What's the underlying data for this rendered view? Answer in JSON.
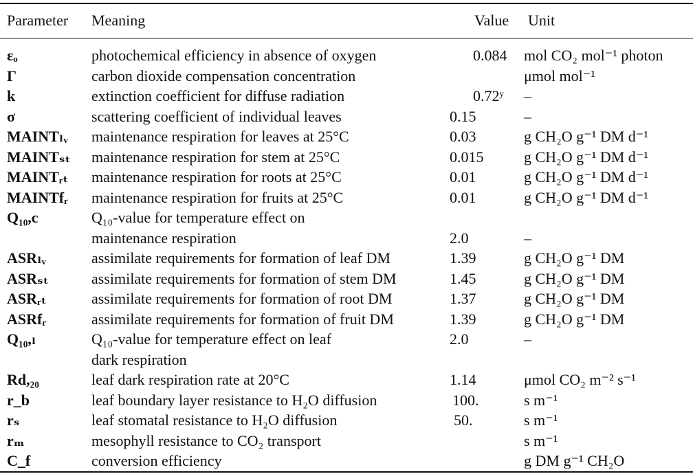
{
  "table": {
    "headers": {
      "parameter": "Parameter",
      "meaning": "Meaning",
      "value": "Value",
      "unit": "Unit"
    },
    "rows": [
      {
        "param": "εₒ",
        "meaning": "photochemical efficiency in absence of oxygen",
        "value": "0.084",
        "unit": "mol CO₂ mol⁻¹ photon"
      },
      {
        "param": "Γ",
        "meaning": "carbon dioxide compensation concentration",
        "value": "",
        "unit": "μmol mol⁻¹"
      },
      {
        "param": "k",
        "meaning": "extinction coefficient for diffuse radiation",
        "value": "0.72ʸ",
        "unit": "–"
      },
      {
        "param": "σ",
        "meaning": "scattering coefficient of individual leaves",
        "value": "0.15",
        "unit": "–"
      },
      {
        "param": "MAINTₗᵥ",
        "meaning": "maintenance respiration for leaves at 25°C",
        "value": "0.03",
        "unit": "g CH₂O g⁻¹ DM d⁻¹"
      },
      {
        "param": "MAINTₛₜ",
        "meaning": "maintenance respiration for stem at 25°C",
        "value": "0.015",
        "unit": "g CH₂O g⁻¹ DM d⁻¹"
      },
      {
        "param": "MAINTᵣₜ",
        "meaning": "maintenance respiration for roots at 25°C",
        "value": "0.01",
        "unit": "g CH₂O g⁻¹ DM d⁻¹"
      },
      {
        "param": "MAINTfᵣ",
        "meaning": "maintenance respiration for fruits at 25°C",
        "value": "0.01",
        "unit": "g CH₂O g⁻¹ DM d⁻¹"
      },
      {
        "param": "Q₁₀,c",
        "meaning": "Q₁₀-value for temperature effect on",
        "value": "",
        "unit": ""
      },
      {
        "param": "",
        "meaning": "maintenance respiration",
        "value": "2.0",
        "unit": "–"
      },
      {
        "param": "ASRₗᵥ",
        "meaning": "assimilate requirements for formation of leaf DM",
        "value": "1.39",
        "unit": "g CH₂O g⁻¹ DM"
      },
      {
        "param": "ASRₛₜ",
        "meaning": "assimilate requirements for formation of stem DM",
        "value": "1.45",
        "unit": "g CH₂O g⁻¹ DM"
      },
      {
        "param": "ASRᵣₜ",
        "meaning": "assimilate requirements for formation of root DM",
        "value": "1.37",
        "unit": "g CH₂O g⁻¹ DM"
      },
      {
        "param": "ASRfᵣ",
        "meaning": "assimilate requirements for formation of fruit DM",
        "value": "1.39",
        "unit": "g CH₂O g⁻¹ DM"
      },
      {
        "param": "Q₁₀,ₗ",
        "meaning": "Q₁₀-value for temperature effect on leaf",
        "value": "2.0",
        "unit": "–"
      },
      {
        "param": "",
        "meaning": "dark respiration",
        "value": "",
        "unit": ""
      },
      {
        "param": "Rd,₂₀",
        "meaning": "leaf dark respiration rate at 20°C",
        "value": "1.14",
        "unit": "μmol CO₂ m⁻² s⁻¹"
      },
      {
        "param": "r_b",
        "meaning": "leaf boundary layer resistance to H₂O diffusion",
        "value": "100.",
        "unit": "s m⁻¹"
      },
      {
        "param": "rₛ",
        "meaning": "leaf stomatal resistance to H₂O diffusion",
        "value": "50.",
        "unit": "s m⁻¹"
      },
      {
        "param": "rₘ",
        "meaning": "mesophyll resistance to CO₂ transport",
        "value": "",
        "unit": "s m⁻¹"
      },
      {
        "param": "C_f",
        "meaning": "conversion efficiency",
        "value": "",
        "unit": "g DM g⁻¹ CH₂O"
      }
    ]
  }
}
